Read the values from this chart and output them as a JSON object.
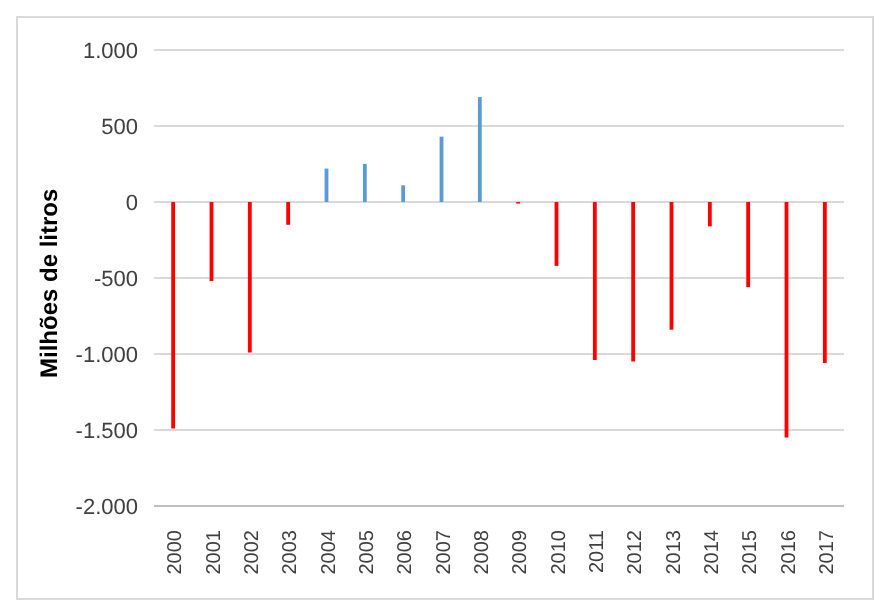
{
  "chart_data": {
    "type": "bar",
    "ylabel": "Milhões de litros",
    "categories": [
      "2000",
      "2001",
      "2002",
      "2003",
      "2004",
      "2005",
      "2006",
      "2007",
      "2008",
      "2009",
      "2010",
      "2011",
      "2012",
      "2013",
      "2014",
      "2015",
      "2016",
      "2017"
    ],
    "values": [
      -1490,
      -520,
      -990,
      -150,
      220,
      250,
      110,
      430,
      690,
      -10,
      -420,
      -1040,
      -1050,
      -840,
      -160,
      -560,
      -1550,
      -1060
    ],
    "colors": [
      "#ff0000",
      "#ff0000",
      "#ff0000",
      "#ff0000",
      "#5b9bd5",
      "#5b9bd5",
      "#5b9bd5",
      "#5b9bd5",
      "#5b9bd5",
      "#ff0000",
      "#ff0000",
      "#ff0000",
      "#ff0000",
      "#ff0000",
      "#ff0000",
      "#ff0000",
      "#ff0000",
      "#ff0000"
    ],
    "ylim": [
      -2000,
      1000
    ],
    "yticks": [
      {
        "value": -2000,
        "label": "-2.000"
      },
      {
        "value": -1500,
        "label": "-1.500"
      },
      {
        "value": -1000,
        "label": "-1.000"
      },
      {
        "value": -500,
        "label": "-500"
      },
      {
        "value": 0,
        "label": "0"
      },
      {
        "value": 500,
        "label": "500"
      },
      {
        "value": 1000,
        "label": "1.000"
      }
    ],
    "grid": "y",
    "legend": false
  }
}
